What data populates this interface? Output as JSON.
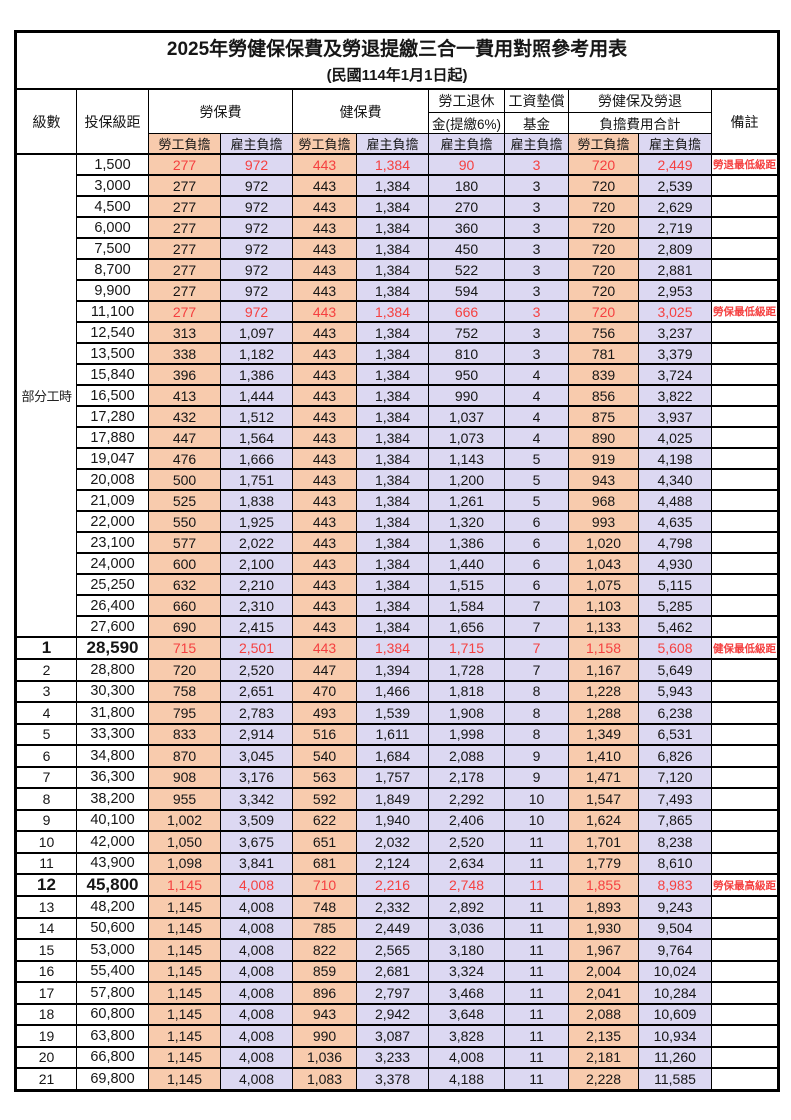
{
  "title": "2025年勞健保保費及勞退提繳三合一費用對照參考用表",
  "subtitle": "(民國114年1月1日起)",
  "columns": {
    "level": "級數",
    "bracket": "投保級距",
    "labor_insurance": "勞保費",
    "health_insurance": "健保費",
    "pension_line1": "勞工退休",
    "pension_line2": "金(提繳6%)",
    "wage_fund_line1": "工資墊償",
    "wage_fund_line2": "基金",
    "total_line1": "勞健保及勞退",
    "total_line2": "負擔費用合計",
    "remark": "備註",
    "employee_label": "勞工負擔",
    "employer_label": "雇主負擔"
  },
  "part_time_label": "部分工時",
  "colors": {
    "employee_bg": "#F8CBAD",
    "employer_bg": "#DCD8F2",
    "highlight_red": "#F54040",
    "border": "#000000"
  },
  "rows": [
    {
      "section": "pt",
      "level": "",
      "bracket": "1,500",
      "li_emp": "277",
      "li_er": "972",
      "hi_emp": "443",
      "hi_er": "1,384",
      "pen_er": "90",
      "fund_er": "3",
      "tot_emp": "720",
      "tot_er": "2,449",
      "remark": "勞退最低級距",
      "red": true,
      "big": false
    },
    {
      "section": "pt",
      "level": "",
      "bracket": "3,000",
      "li_emp": "277",
      "li_er": "972",
      "hi_emp": "443",
      "hi_er": "1,384",
      "pen_er": "180",
      "fund_er": "3",
      "tot_emp": "720",
      "tot_er": "2,539",
      "remark": "",
      "red": false,
      "big": false
    },
    {
      "section": "pt",
      "level": "",
      "bracket": "4,500",
      "li_emp": "277",
      "li_er": "972",
      "hi_emp": "443",
      "hi_er": "1,384",
      "pen_er": "270",
      "fund_er": "3",
      "tot_emp": "720",
      "tot_er": "2,629",
      "remark": "",
      "red": false,
      "big": false
    },
    {
      "section": "pt",
      "level": "",
      "bracket": "6,000",
      "li_emp": "277",
      "li_er": "972",
      "hi_emp": "443",
      "hi_er": "1,384",
      "pen_er": "360",
      "fund_er": "3",
      "tot_emp": "720",
      "tot_er": "2,719",
      "remark": "",
      "red": false,
      "big": false
    },
    {
      "section": "pt",
      "level": "",
      "bracket": "7,500",
      "li_emp": "277",
      "li_er": "972",
      "hi_emp": "443",
      "hi_er": "1,384",
      "pen_er": "450",
      "fund_er": "3",
      "tot_emp": "720",
      "tot_er": "2,809",
      "remark": "",
      "red": false,
      "big": false
    },
    {
      "section": "pt",
      "level": "",
      "bracket": "8,700",
      "li_emp": "277",
      "li_er": "972",
      "hi_emp": "443",
      "hi_er": "1,384",
      "pen_er": "522",
      "fund_er": "3",
      "tot_emp": "720",
      "tot_er": "2,881",
      "remark": "",
      "red": false,
      "big": false
    },
    {
      "section": "pt",
      "level": "",
      "bracket": "9,900",
      "li_emp": "277",
      "li_er": "972",
      "hi_emp": "443",
      "hi_er": "1,384",
      "pen_er": "594",
      "fund_er": "3",
      "tot_emp": "720",
      "tot_er": "2,953",
      "remark": "",
      "red": false,
      "big": false
    },
    {
      "section": "pt",
      "level": "",
      "bracket": "11,100",
      "li_emp": "277",
      "li_er": "972",
      "hi_emp": "443",
      "hi_er": "1,384",
      "pen_er": "666",
      "fund_er": "3",
      "tot_emp": "720",
      "tot_er": "3,025",
      "remark": "勞保最低級距",
      "red": true,
      "big": false
    },
    {
      "section": "pt",
      "level": "",
      "bracket": "12,540",
      "li_emp": "313",
      "li_er": "1,097",
      "hi_emp": "443",
      "hi_er": "1,384",
      "pen_er": "752",
      "fund_er": "3",
      "tot_emp": "756",
      "tot_er": "3,237",
      "remark": "",
      "red": false,
      "big": false
    },
    {
      "section": "pt",
      "level": "",
      "bracket": "13,500",
      "li_emp": "338",
      "li_er": "1,182",
      "hi_emp": "443",
      "hi_er": "1,384",
      "pen_er": "810",
      "fund_er": "3",
      "tot_emp": "781",
      "tot_er": "3,379",
      "remark": "",
      "red": false,
      "big": false
    },
    {
      "section": "pt",
      "level": "",
      "bracket": "15,840",
      "li_emp": "396",
      "li_er": "1,386",
      "hi_emp": "443",
      "hi_er": "1,384",
      "pen_er": "950",
      "fund_er": "4",
      "tot_emp": "839",
      "tot_er": "3,724",
      "remark": "",
      "red": false,
      "big": false
    },
    {
      "section": "pt",
      "level": "",
      "bracket": "16,500",
      "li_emp": "413",
      "li_er": "1,444",
      "hi_emp": "443",
      "hi_er": "1,384",
      "pen_er": "990",
      "fund_er": "4",
      "tot_emp": "856",
      "tot_er": "3,822",
      "remark": "",
      "red": false,
      "big": false
    },
    {
      "section": "pt",
      "level": "",
      "bracket": "17,280",
      "li_emp": "432",
      "li_er": "1,512",
      "hi_emp": "443",
      "hi_er": "1,384",
      "pen_er": "1,037",
      "fund_er": "4",
      "tot_emp": "875",
      "tot_er": "3,937",
      "remark": "",
      "red": false,
      "big": false
    },
    {
      "section": "pt",
      "level": "",
      "bracket": "17,880",
      "li_emp": "447",
      "li_er": "1,564",
      "hi_emp": "443",
      "hi_er": "1,384",
      "pen_er": "1,073",
      "fund_er": "4",
      "tot_emp": "890",
      "tot_er": "4,025",
      "remark": "",
      "red": false,
      "big": false
    },
    {
      "section": "pt",
      "level": "",
      "bracket": "19,047",
      "li_emp": "476",
      "li_er": "1,666",
      "hi_emp": "443",
      "hi_er": "1,384",
      "pen_er": "1,143",
      "fund_er": "5",
      "tot_emp": "919",
      "tot_er": "4,198",
      "remark": "",
      "red": false,
      "big": false
    },
    {
      "section": "pt",
      "level": "",
      "bracket": "20,008",
      "li_emp": "500",
      "li_er": "1,751",
      "hi_emp": "443",
      "hi_er": "1,384",
      "pen_er": "1,200",
      "fund_er": "5",
      "tot_emp": "943",
      "tot_er": "4,340",
      "remark": "",
      "red": false,
      "big": false
    },
    {
      "section": "pt",
      "level": "",
      "bracket": "21,009",
      "li_emp": "525",
      "li_er": "1,838",
      "hi_emp": "443",
      "hi_er": "1,384",
      "pen_er": "1,261",
      "fund_er": "5",
      "tot_emp": "968",
      "tot_er": "4,488",
      "remark": "",
      "red": false,
      "big": false
    },
    {
      "section": "pt",
      "level": "",
      "bracket": "22,000",
      "li_emp": "550",
      "li_er": "1,925",
      "hi_emp": "443",
      "hi_er": "1,384",
      "pen_er": "1,320",
      "fund_er": "6",
      "tot_emp": "993",
      "tot_er": "4,635",
      "remark": "",
      "red": false,
      "big": false
    },
    {
      "section": "pt",
      "level": "",
      "bracket": "23,100",
      "li_emp": "577",
      "li_er": "2,022",
      "hi_emp": "443",
      "hi_er": "1,384",
      "pen_er": "1,386",
      "fund_er": "6",
      "tot_emp": "1,020",
      "tot_er": "4,798",
      "remark": "",
      "red": false,
      "big": false
    },
    {
      "section": "pt",
      "level": "",
      "bracket": "24,000",
      "li_emp": "600",
      "li_er": "2,100",
      "hi_emp": "443",
      "hi_er": "1,384",
      "pen_er": "1,440",
      "fund_er": "6",
      "tot_emp": "1,043",
      "tot_er": "4,930",
      "remark": "",
      "red": false,
      "big": false
    },
    {
      "section": "pt",
      "level": "",
      "bracket": "25,250",
      "li_emp": "632",
      "li_er": "2,210",
      "hi_emp": "443",
      "hi_er": "1,384",
      "pen_er": "1,515",
      "fund_er": "6",
      "tot_emp": "1,075",
      "tot_er": "5,115",
      "remark": "",
      "red": false,
      "big": false
    },
    {
      "section": "pt",
      "level": "",
      "bracket": "26,400",
      "li_emp": "660",
      "li_er": "2,310",
      "hi_emp": "443",
      "hi_er": "1,384",
      "pen_er": "1,584",
      "fund_er": "7",
      "tot_emp": "1,103",
      "tot_er": "5,285",
      "remark": "",
      "red": false,
      "big": false
    },
    {
      "section": "pt",
      "level": "",
      "bracket": "27,600",
      "li_emp": "690",
      "li_er": "2,415",
      "hi_emp": "443",
      "hi_er": "1,384",
      "pen_er": "1,656",
      "fund_er": "7",
      "tot_emp": "1,133",
      "tot_er": "5,462",
      "remark": "",
      "red": false,
      "big": false
    },
    {
      "section": "num",
      "level": "1",
      "bracket": "28,590",
      "li_emp": "715",
      "li_er": "2,501",
      "hi_emp": "443",
      "hi_er": "1,384",
      "pen_er": "1,715",
      "fund_er": "7",
      "tot_emp": "1,158",
      "tot_er": "5,608",
      "remark": "健保最低級距",
      "red": true,
      "big": true
    },
    {
      "section": "num",
      "level": "2",
      "bracket": "28,800",
      "li_emp": "720",
      "li_er": "2,520",
      "hi_emp": "447",
      "hi_er": "1,394",
      "pen_er": "1,728",
      "fund_er": "7",
      "tot_emp": "1,167",
      "tot_er": "5,649",
      "remark": "",
      "red": false,
      "big": false
    },
    {
      "section": "num",
      "level": "3",
      "bracket": "30,300",
      "li_emp": "758",
      "li_er": "2,651",
      "hi_emp": "470",
      "hi_er": "1,466",
      "pen_er": "1,818",
      "fund_er": "8",
      "tot_emp": "1,228",
      "tot_er": "5,943",
      "remark": "",
      "red": false,
      "big": false
    },
    {
      "section": "num",
      "level": "4",
      "bracket": "31,800",
      "li_emp": "795",
      "li_er": "2,783",
      "hi_emp": "493",
      "hi_er": "1,539",
      "pen_er": "1,908",
      "fund_er": "8",
      "tot_emp": "1,288",
      "tot_er": "6,238",
      "remark": "",
      "red": false,
      "big": false
    },
    {
      "section": "num",
      "level": "5",
      "bracket": "33,300",
      "li_emp": "833",
      "li_er": "2,914",
      "hi_emp": "516",
      "hi_er": "1,611",
      "pen_er": "1,998",
      "fund_er": "8",
      "tot_emp": "1,349",
      "tot_er": "6,531",
      "remark": "",
      "red": false,
      "big": false
    },
    {
      "section": "num",
      "level": "6",
      "bracket": "34,800",
      "li_emp": "870",
      "li_er": "3,045",
      "hi_emp": "540",
      "hi_er": "1,684",
      "pen_er": "2,088",
      "fund_er": "9",
      "tot_emp": "1,410",
      "tot_er": "6,826",
      "remark": "",
      "red": false,
      "big": false
    },
    {
      "section": "num",
      "level": "7",
      "bracket": "36,300",
      "li_emp": "908",
      "li_er": "3,176",
      "hi_emp": "563",
      "hi_er": "1,757",
      "pen_er": "2,178",
      "fund_er": "9",
      "tot_emp": "1,471",
      "tot_er": "7,120",
      "remark": "",
      "red": false,
      "big": false
    },
    {
      "section": "num",
      "level": "8",
      "bracket": "38,200",
      "li_emp": "955",
      "li_er": "3,342",
      "hi_emp": "592",
      "hi_er": "1,849",
      "pen_er": "2,292",
      "fund_er": "10",
      "tot_emp": "1,547",
      "tot_er": "7,493",
      "remark": "",
      "red": false,
      "big": false
    },
    {
      "section": "num",
      "level": "9",
      "bracket": "40,100",
      "li_emp": "1,002",
      "li_er": "3,509",
      "hi_emp": "622",
      "hi_er": "1,940",
      "pen_er": "2,406",
      "fund_er": "10",
      "tot_emp": "1,624",
      "tot_er": "7,865",
      "remark": "",
      "red": false,
      "big": false
    },
    {
      "section": "num",
      "level": "10",
      "bracket": "42,000",
      "li_emp": "1,050",
      "li_er": "3,675",
      "hi_emp": "651",
      "hi_er": "2,032",
      "pen_er": "2,520",
      "fund_er": "11",
      "tot_emp": "1,701",
      "tot_er": "8,238",
      "remark": "",
      "red": false,
      "big": false
    },
    {
      "section": "num",
      "level": "11",
      "bracket": "43,900",
      "li_emp": "1,098",
      "li_er": "3,841",
      "hi_emp": "681",
      "hi_er": "2,124",
      "pen_er": "2,634",
      "fund_er": "11",
      "tot_emp": "1,779",
      "tot_er": "8,610",
      "remark": "",
      "red": false,
      "big": false
    },
    {
      "section": "num",
      "level": "12",
      "bracket": "45,800",
      "li_emp": "1,145",
      "li_er": "4,008",
      "hi_emp": "710",
      "hi_er": "2,216",
      "pen_er": "2,748",
      "fund_er": "11",
      "tot_emp": "1,855",
      "tot_er": "8,983",
      "remark": "勞保最高級距",
      "red": true,
      "big": true
    },
    {
      "section": "num",
      "level": "13",
      "bracket": "48,200",
      "li_emp": "1,145",
      "li_er": "4,008",
      "hi_emp": "748",
      "hi_er": "2,332",
      "pen_er": "2,892",
      "fund_er": "11",
      "tot_emp": "1,893",
      "tot_er": "9,243",
      "remark": "",
      "red": false,
      "big": false
    },
    {
      "section": "num",
      "level": "14",
      "bracket": "50,600",
      "li_emp": "1,145",
      "li_er": "4,008",
      "hi_emp": "785",
      "hi_er": "2,449",
      "pen_er": "3,036",
      "fund_er": "11",
      "tot_emp": "1,930",
      "tot_er": "9,504",
      "remark": "",
      "red": false,
      "big": false
    },
    {
      "section": "num",
      "level": "15",
      "bracket": "53,000",
      "li_emp": "1,145",
      "li_er": "4,008",
      "hi_emp": "822",
      "hi_er": "2,565",
      "pen_er": "3,180",
      "fund_er": "11",
      "tot_emp": "1,967",
      "tot_er": "9,764",
      "remark": "",
      "red": false,
      "big": false
    },
    {
      "section": "num",
      "level": "16",
      "bracket": "55,400",
      "li_emp": "1,145",
      "li_er": "4,008",
      "hi_emp": "859",
      "hi_er": "2,681",
      "pen_er": "3,324",
      "fund_er": "11",
      "tot_emp": "2,004",
      "tot_er": "10,024",
      "remark": "",
      "red": false,
      "big": false
    },
    {
      "section": "num",
      "level": "17",
      "bracket": "57,800",
      "li_emp": "1,145",
      "li_er": "4,008",
      "hi_emp": "896",
      "hi_er": "2,797",
      "pen_er": "3,468",
      "fund_er": "11",
      "tot_emp": "2,041",
      "tot_er": "10,284",
      "remark": "",
      "red": false,
      "big": false
    },
    {
      "section": "num",
      "level": "18",
      "bracket": "60,800",
      "li_emp": "1,145",
      "li_er": "4,008",
      "hi_emp": "943",
      "hi_er": "2,942",
      "pen_er": "3,648",
      "fund_er": "11",
      "tot_emp": "2,088",
      "tot_er": "10,609",
      "remark": "",
      "red": false,
      "big": false
    },
    {
      "section": "num",
      "level": "19",
      "bracket": "63,800",
      "li_emp": "1,145",
      "li_er": "4,008",
      "hi_emp": "990",
      "hi_er": "3,087",
      "pen_er": "3,828",
      "fund_er": "11",
      "tot_emp": "2,135",
      "tot_er": "10,934",
      "remark": "",
      "red": false,
      "big": false
    },
    {
      "section": "num",
      "level": "20",
      "bracket": "66,800",
      "li_emp": "1,145",
      "li_er": "4,008",
      "hi_emp": "1,036",
      "hi_er": "3,233",
      "pen_er": "4,008",
      "fund_er": "11",
      "tot_emp": "2,181",
      "tot_er": "11,260",
      "remark": "",
      "red": false,
      "big": false
    },
    {
      "section": "num",
      "level": "21",
      "bracket": "69,800",
      "li_emp": "1,145",
      "li_er": "4,008",
      "hi_emp": "1,083",
      "hi_er": "3,378",
      "pen_er": "4,188",
      "fund_er": "11",
      "tot_emp": "2,228",
      "tot_er": "11,585",
      "remark": "",
      "red": false,
      "big": false
    }
  ]
}
